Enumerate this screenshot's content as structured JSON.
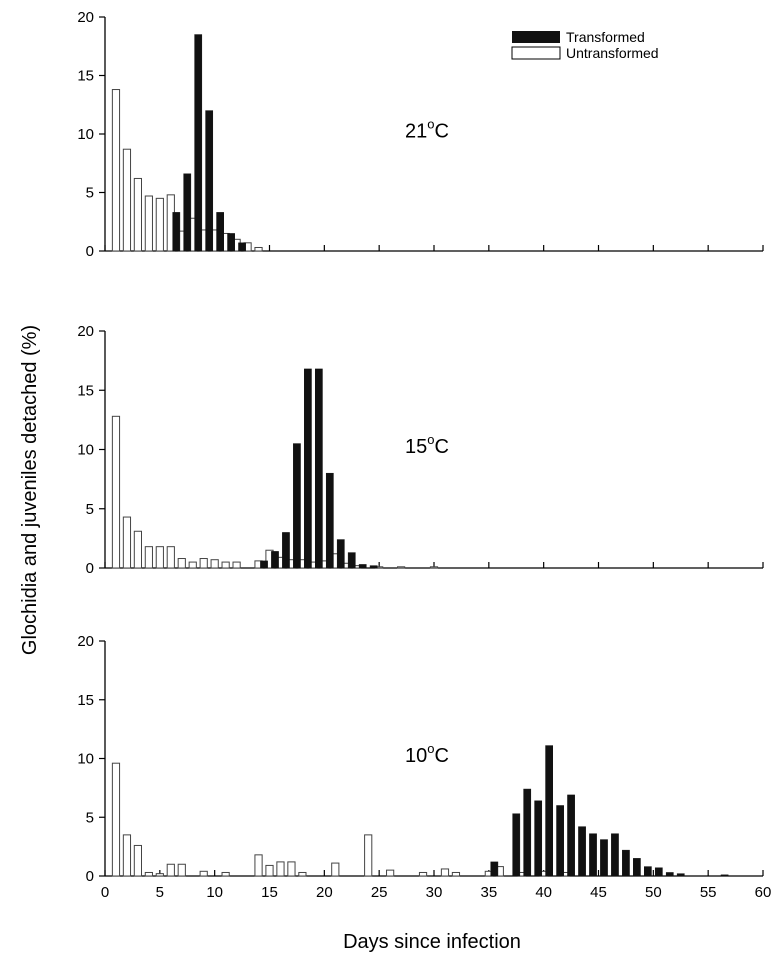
{
  "chart_data": {
    "type": "bar",
    "xlabel": "Days since infection",
    "ylabel": "Glochidia and juveniles detached (%)",
    "xlim": [
      0,
      60
    ],
    "xticks": [
      "0",
      "5",
      "10",
      "15",
      "20",
      "25",
      "30",
      "35",
      "40",
      "45",
      "50",
      "55",
      "60"
    ],
    "ylim": [
      0,
      20
    ],
    "yticks": [
      "0",
      "5",
      "10",
      "15",
      "20"
    ],
    "legend": {
      "placement": "top-right",
      "entries": [
        {
          "name": "Transformed",
          "color": "#111111"
        },
        {
          "name": "Untransformed",
          "color": "#ffffff"
        }
      ]
    },
    "panels": [
      {
        "label": "21",
        "unit": "oC",
        "untransformed": [
          [
            1,
            13.8
          ],
          [
            2,
            8.7
          ],
          [
            3,
            6.2
          ],
          [
            4,
            4.7
          ],
          [
            5,
            4.5
          ],
          [
            6,
            4.8
          ],
          [
            7,
            1.7
          ],
          [
            8,
            2.8
          ],
          [
            9,
            1.8
          ],
          [
            10,
            1.8
          ],
          [
            11,
            1.5
          ],
          [
            12,
            1.0
          ],
          [
            13,
            0.7
          ],
          [
            14,
            0.3
          ]
        ],
        "transformed": [
          [
            6.5,
            3.3
          ],
          [
            7.5,
            6.6
          ],
          [
            8.5,
            18.5
          ],
          [
            9.5,
            12.0
          ],
          [
            10.5,
            3.3
          ],
          [
            11.5,
            1.5
          ],
          [
            12.5,
            0.7
          ]
        ]
      },
      {
        "label": "15",
        "unit": "oC",
        "untransformed": [
          [
            1,
            12.8
          ],
          [
            2,
            4.3
          ],
          [
            3,
            3.1
          ],
          [
            4,
            1.8
          ],
          [
            5,
            1.8
          ],
          [
            6,
            1.8
          ],
          [
            7,
            0.8
          ],
          [
            8,
            0.5
          ],
          [
            9,
            0.8
          ],
          [
            10,
            0.7
          ],
          [
            11,
            0.5
          ],
          [
            12,
            0.5
          ],
          [
            14,
            0.6
          ],
          [
            15,
            1.5
          ],
          [
            16,
            0.9
          ],
          [
            17,
            0.7
          ],
          [
            18,
            0.7
          ],
          [
            19,
            0.5
          ],
          [
            20,
            0.6
          ],
          [
            21,
            1.2
          ],
          [
            22,
            0.4
          ],
          [
            23,
            0.2
          ],
          [
            25,
            0.1
          ],
          [
            27,
            0.1
          ],
          [
            30,
            0.1
          ]
        ],
        "transformed": [
          [
            14.5,
            0.6
          ],
          [
            15.5,
            1.4
          ],
          [
            16.5,
            3.0
          ],
          [
            17.5,
            10.5
          ],
          [
            18.5,
            16.8
          ],
          [
            19.5,
            16.8
          ],
          [
            20.5,
            8.0
          ],
          [
            21.5,
            2.4
          ],
          [
            22.5,
            1.3
          ],
          [
            23.5,
            0.3
          ],
          [
            24.5,
            0.2
          ]
        ]
      },
      {
        "label": "10",
        "unit": "oC",
        "untransformed": [
          [
            1,
            9.6
          ],
          [
            2,
            3.5
          ],
          [
            3,
            2.6
          ],
          [
            4,
            0.3
          ],
          [
            5,
            0.2
          ],
          [
            6,
            1.0
          ],
          [
            7,
            1.0
          ],
          [
            9,
            0.4
          ],
          [
            11,
            0.3
          ],
          [
            14,
            1.8
          ],
          [
            15,
            0.9
          ],
          [
            16,
            1.2
          ],
          [
            17,
            1.2
          ],
          [
            18,
            0.3
          ],
          [
            21,
            1.1
          ],
          [
            24,
            3.5
          ],
          [
            26,
            0.5
          ],
          [
            29,
            0.3
          ],
          [
            31,
            0.6
          ],
          [
            32,
            0.3
          ],
          [
            35,
            0.4
          ],
          [
            36,
            0.8
          ],
          [
            38,
            0.3
          ],
          [
            40,
            0.4
          ],
          [
            42,
            0.3
          ]
        ],
        "transformed": [
          [
            35.5,
            1.2
          ],
          [
            37.5,
            5.3
          ],
          [
            38.5,
            7.4
          ],
          [
            39.5,
            6.4
          ],
          [
            40.5,
            11.1
          ],
          [
            41.5,
            6.0
          ],
          [
            42.5,
            6.9
          ],
          [
            43.5,
            4.2
          ],
          [
            44.5,
            3.6
          ],
          [
            45.5,
            3.1
          ],
          [
            46.5,
            3.6
          ],
          [
            47.5,
            2.2
          ],
          [
            48.5,
            1.5
          ],
          [
            49.5,
            0.8
          ],
          [
            50.5,
            0.7
          ],
          [
            51.5,
            0.3
          ],
          [
            52.5,
            0.2
          ],
          [
            56.5,
            0.1
          ]
        ]
      }
    ]
  }
}
